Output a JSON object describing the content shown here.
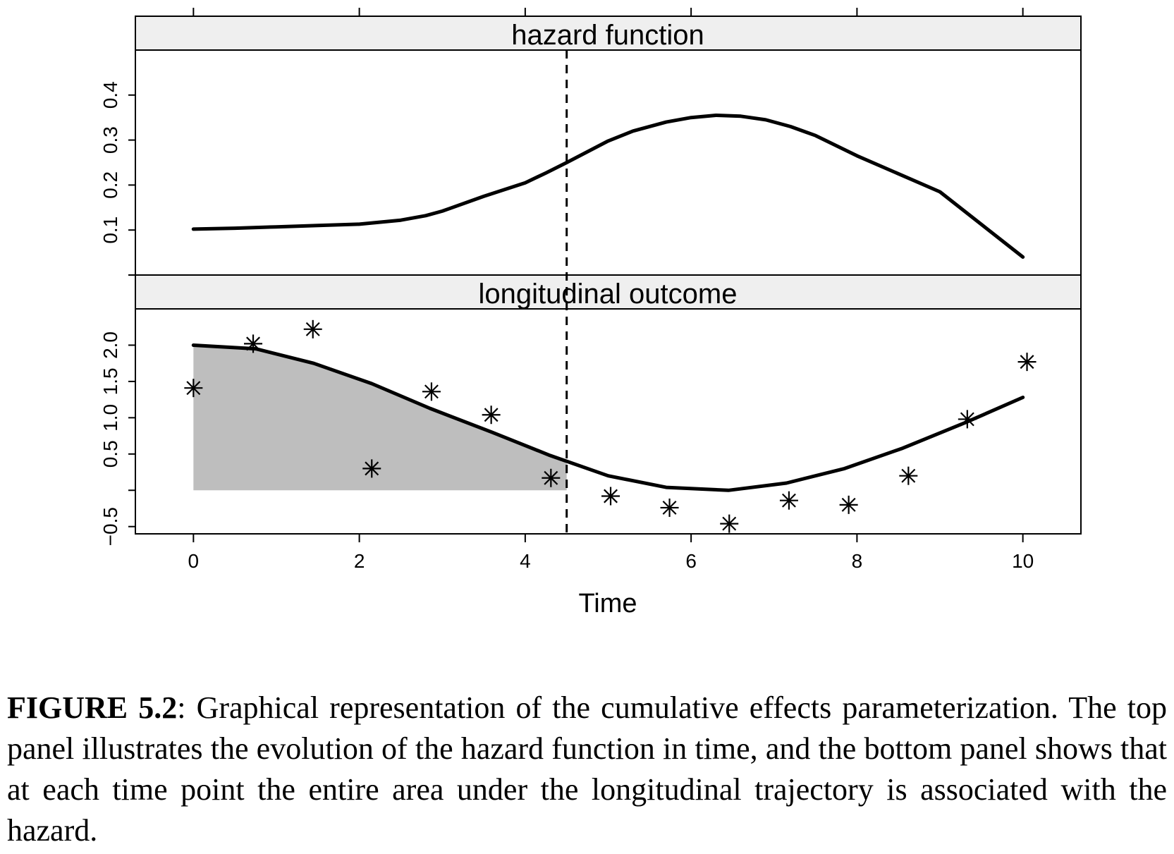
{
  "figure": {
    "caption_label": "FIGURE 5.2",
    "caption_text": ": Graphical representation of the cumulative effects parameterization. The top panel illustrates the evolution of the hazard function in time, and the bottom panel shows that at each time point the entire area under the longitudinal trajectory is associated with the hazard."
  },
  "chart_data": {
    "type": "line",
    "layout": "two stacked panels sharing the x axis",
    "x_label": "Time",
    "x_range": [
      -0.7,
      10.7
    ],
    "x_ticks": [
      "0",
      "2",
      "4",
      "6",
      "8",
      "10"
    ],
    "reference_time": 4.5,
    "reference_line_style": "dashed vertical",
    "panels": [
      {
        "title": "hazard function",
        "y_range": [
          0.0,
          0.5
        ],
        "y_ticks": [
          "0.1",
          "0.2",
          "0.3",
          "0.4"
        ],
        "series": [
          {
            "style": "solid line",
            "x": [
              0,
              0.5,
              1,
              1.5,
              2,
              2.5,
              2.8,
              3,
              3.5,
              4,
              4.25,
              4.5,
              5,
              5.3,
              5.7,
              6,
              6.3,
              6.6,
              6.9,
              7.2,
              7.5,
              8,
              9,
              10
            ],
            "y": [
              0.102,
              0.104,
              0.107,
              0.11,
              0.113,
              0.122,
              0.132,
              0.142,
              0.175,
              0.205,
              0.227,
              0.25,
              0.298,
              0.32,
              0.34,
              0.35,
              0.355,
              0.353,
              0.345,
              0.33,
              0.31,
              0.265,
              0.185,
              0.04
            ]
          }
        ]
      },
      {
        "title": "longitudinal outcome",
        "y_range": [
          -0.6,
          2.5
        ],
        "y_ticks": [
          "-0.5",
          "0.5",
          "1.0",
          "1.5",
          "2.0"
        ],
        "series": [
          {
            "style": "solid line (trajectory)",
            "x": [
              0,
              0.75,
              1.45,
              2.15,
              2.85,
              3.6,
              4.3,
              5,
              5.7,
              6.45,
              7.15,
              7.85,
              8.55,
              9.3,
              10
            ],
            "y": [
              2.0,
              1.95,
              1.75,
              1.47,
              1.13,
              0.8,
              0.48,
              0.2,
              0.04,
              0.0,
              0.1,
              0.3,
              0.58,
              0.93,
              1.28
            ]
          },
          {
            "style": "asterisk markers (observed measurements)",
            "x": [
              0,
              0.72,
              1.44,
              2.15,
              2.87,
              3.59,
              4.31,
              5.03,
              5.74,
              6.46,
              7.18,
              7.9,
              8.62,
              9.33,
              10.05
            ],
            "y": [
              1.41,
              2.02,
              2.22,
              0.3,
              1.36,
              1.04,
              0.17,
              -0.08,
              -0.24,
              -0.46,
              -0.14,
              -0.2,
              0.2,
              0.98,
              1.77
            ]
          }
        ],
        "shaded_area": {
          "description": "area under the trajectory from the start of follow-up up to the reference time",
          "x_from": 0,
          "x_to": 4.5,
          "baseline": 0.0,
          "fill_color": "#bebebe"
        }
      }
    ]
  }
}
